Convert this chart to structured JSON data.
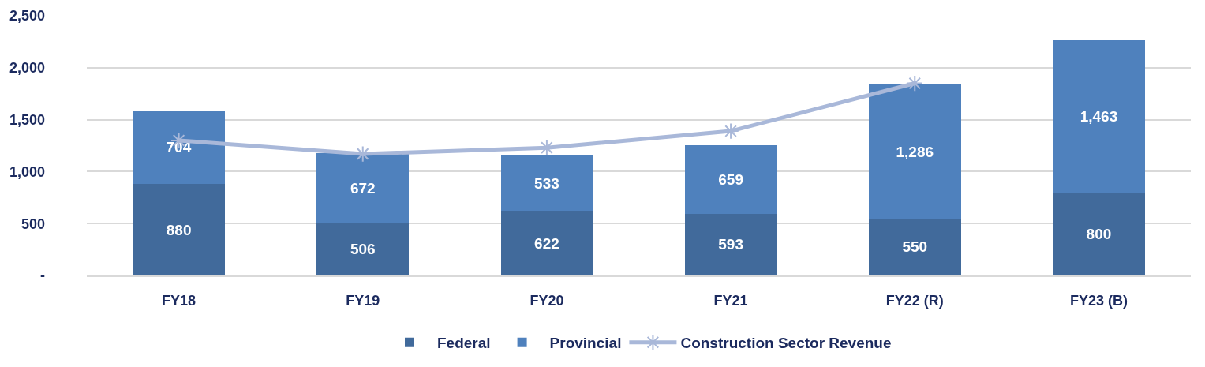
{
  "chart_data": {
    "type": "bar",
    "stacked": true,
    "categories": [
      "FY18",
      "FY19",
      "FY20",
      "FY21",
      "FY22 (R)",
      "FY23 (B)"
    ],
    "series": [
      {
        "name": "Federal",
        "color": "#416a9b",
        "values": [
          880,
          506,
          622,
          593,
          550,
          800
        ],
        "value_labels": [
          "880",
          "506",
          "622",
          "593",
          "550",
          "800"
        ]
      },
      {
        "name": "Provincial",
        "color": "#4f81bd",
        "values": [
          704,
          672,
          533,
          659,
          1286,
          1463
        ],
        "value_labels": [
          "704",
          "672",
          "533",
          "659",
          "1,286",
          "1,463"
        ]
      },
      {
        "name": "Construction Sector Revenue",
        "type": "line",
        "color": "#a9b8d9",
        "marker": "cross",
        "values": [
          1300,
          1170,
          1230,
          1390,
          1850,
          null
        ]
      }
    ],
    "ylim": [
      0,
      2500
    ],
    "yticks": [
      {
        "value": 0,
        "label": "-"
      },
      {
        "value": 500,
        "label": "500"
      },
      {
        "value": 1000,
        "label": "1,000"
      },
      {
        "value": 1500,
        "label": "1,500"
      },
      {
        "value": 2000,
        "label": "2,000"
      },
      {
        "value": 2500,
        "label": "2,500"
      }
    ],
    "grid": "y",
    "legend": "bottom"
  }
}
